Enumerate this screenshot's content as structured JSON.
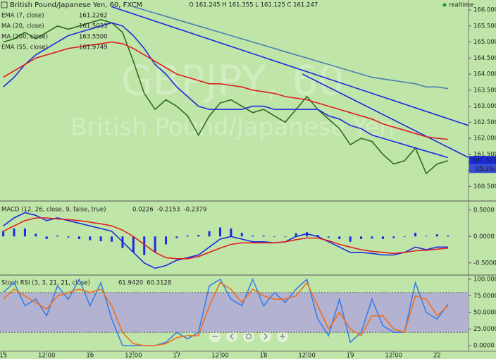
{
  "chart_data": [
    {
      "type": "line",
      "title": "British Pound/Japanese Yen, 60, FXCM",
      "ohlc": "O 161.245  H 161.355  L 161.125  C 161.247",
      "status": "realtime",
      "watermark": [
        "GBPJPY, 60",
        "British Pound/Japanese Yen"
      ],
      "xlim": [
        -0.3,
        42.9
      ],
      "ylim": [
        160.2,
        166.2
      ],
      "yticks": [
        {
          "value": 160.5,
          "label": "160.500"
        },
        {
          "value": 161,
          "label": "161.000"
        },
        {
          "value": 161.5,
          "label": "161.500"
        },
        {
          "value": 162,
          "label": "162.000"
        },
        {
          "value": 162.5,
          "label": "162.500"
        },
        {
          "value": 163,
          "label": "163.000"
        },
        {
          "value": 163.5,
          "label": "163.500"
        },
        {
          "value": 164,
          "label": "164.000"
        },
        {
          "value": 164.5,
          "label": "164.500"
        },
        {
          "value": 165,
          "label": "165.000"
        },
        {
          "value": 165.5,
          "label": "165.500"
        },
        {
          "value": 166,
          "label": "166.000"
        }
      ],
      "last_price": 161.315,
      "last_time": "15:29",
      "series": [
        {
          "name": "EMA (7, close)",
          "legend_value": "161.2262",
          "color": "#2e6b1e",
          "style": "line",
          "values": [
            165.0,
            165.1,
            165.3,
            165.1,
            165.3,
            165.5,
            165.4,
            165.5,
            165.6,
            165.7,
            165.6,
            165.3,
            164.4,
            163.4,
            162.9,
            163.2,
            163.0,
            162.7,
            162.1,
            162.7,
            163.1,
            163.2,
            163.0,
            162.8,
            162.9,
            162.7,
            162.5,
            162.9,
            163.3,
            162.9,
            162.6,
            162.3,
            161.8,
            162.0,
            161.9,
            161.5,
            161.2,
            161.3,
            161.7,
            160.9,
            161.2,
            161.3,
            null
          ]
        },
        {
          "name": "MA (20, close)",
          "legend_value": "161.5033",
          "color": "#1a2be0",
          "style": "line",
          "values": [
            163.6,
            163.9,
            164.3,
            164.6,
            164.8,
            165.0,
            165.2,
            165.3,
            165.4,
            165.5,
            165.6,
            165.5,
            165.2,
            164.8,
            164.3,
            164.0,
            163.6,
            163.3,
            163.0,
            162.9,
            162.9,
            162.9,
            162.9,
            163.0,
            163.0,
            162.9,
            162.9,
            162.9,
            162.9,
            162.9,
            162.7,
            162.6,
            162.4,
            162.3,
            162.1,
            162.0,
            161.9,
            161.8,
            161.7,
            161.6,
            161.5,
            161.4,
            null
          ]
        },
        {
          "name": "MA (200, close)",
          "legend_value": "163.5500",
          "color": "#4a7fb0",
          "style": "line",
          "values": [
            null,
            null,
            null,
            null,
            null,
            null,
            null,
            null,
            null,
            null,
            null,
            null,
            166.1,
            166.0,
            165.9,
            165.8,
            165.7,
            165.6,
            165.5,
            165.4,
            165.3,
            165.2,
            165.1,
            165.0,
            164.9,
            164.8,
            164.7,
            164.6,
            164.5,
            164.4,
            164.3,
            164.2,
            164.1,
            164.0,
            163.9,
            163.85,
            163.8,
            163.75,
            163.7,
            163.6,
            163.6,
            163.55,
            null
          ]
        },
        {
          "name": "EMA (55, close)",
          "legend_value": "161.9749",
          "color": "#e02020",
          "style": "line",
          "values": [
            163.9,
            164.1,
            164.3,
            164.5,
            164.6,
            164.7,
            164.8,
            164.85,
            164.9,
            164.95,
            165.0,
            164.95,
            164.8,
            164.6,
            164.4,
            164.2,
            164.0,
            163.9,
            163.8,
            163.7,
            163.7,
            163.65,
            163.6,
            163.5,
            163.45,
            163.4,
            163.3,
            163.25,
            163.2,
            163.1,
            163.0,
            162.9,
            162.8,
            162.7,
            162.6,
            162.45,
            162.35,
            162.25,
            162.15,
            162.05,
            162.0,
            161.97,
            null
          ]
        }
      ],
      "trendlines": [
        {
          "color": "#1a2be0",
          "x": [
            10,
            42.9
          ],
          "values": [
            166.1,
            162.4
          ]
        },
        {
          "color": "#1a2be0",
          "x": [
            27.6,
            42.9
          ],
          "values": [
            164.0,
            161.4
          ]
        }
      ]
    },
    {
      "type": "line",
      "title": "MACD (12, 26, close, 9, false, true)",
      "xlim": [
        -0.3,
        42.9
      ],
      "ylim": [
        -0.65,
        0.63
      ],
      "yticks": [
        {
          "value": -0.5,
          "label": "-0.5000"
        },
        {
          "value": 0,
          "label": "0.0000"
        },
        {
          "value": 0.5,
          "label": "0.5000"
        }
      ],
      "series": [
        {
          "legend_value": "0.0226",
          "color": "#1a2be0",
          "style": "bar",
          "values": [
            0.1,
            0.15,
            0.15,
            0.05,
            -0.05,
            0.02,
            -0.02,
            -0.05,
            -0.07,
            -0.09,
            -0.1,
            -0.22,
            -0.3,
            -0.35,
            -0.3,
            -0.15,
            -0.03,
            0.02,
            0.03,
            0.1,
            0.17,
            0.15,
            0.07,
            0.02,
            0.02,
            0,
            0,
            0.06,
            0.08,
            0.03,
            -0.02,
            -0.05,
            -0.1,
            -0.05,
            -0.04,
            -0.05,
            -0.03,
            0,
            0.07,
            0.01,
            0.04,
            0.02,
            null
          ]
        },
        {
          "legend_value": "-0.2153",
          "color": "#1a2be0",
          "style": "line",
          "values": [
            0.2,
            0.35,
            0.45,
            0.4,
            0.3,
            0.35,
            0.3,
            0.25,
            0.2,
            0.15,
            0.1,
            -0.1,
            -0.3,
            -0.5,
            -0.6,
            -0.55,
            -0.45,
            -0.4,
            -0.35,
            -0.2,
            -0.05,
            0.0,
            -0.05,
            -0.1,
            -0.1,
            -0.12,
            -0.1,
            0.0,
            0.05,
            0.0,
            -0.1,
            -0.2,
            -0.3,
            -0.3,
            -0.32,
            -0.35,
            -0.35,
            -0.3,
            -0.2,
            -0.25,
            -0.2,
            -0.2,
            null
          ]
        },
        {
          "legend_value": "-0.2379",
          "color": "#e02020",
          "style": "line",
          "values": [
            0.1,
            0.2,
            0.3,
            0.35,
            0.35,
            0.33,
            0.32,
            0.3,
            0.27,
            0.24,
            0.2,
            0.12,
            0.0,
            -0.15,
            -0.3,
            -0.4,
            -0.42,
            -0.42,
            -0.38,
            -0.3,
            -0.22,
            -0.15,
            -0.12,
            -0.12,
            -0.12,
            -0.12,
            -0.1,
            -0.06,
            -0.03,
            -0.03,
            -0.08,
            -0.15,
            -0.2,
            -0.25,
            -0.28,
            -0.3,
            -0.32,
            -0.3,
            -0.27,
            -0.26,
            -0.24,
            -0.22,
            null
          ]
        }
      ]
    },
    {
      "type": "line",
      "title": "Stoch RSI (3, 3, 21, 21, close)",
      "xlim": [
        -0.3,
        42.9
      ],
      "ylim": [
        -8.5,
        103.2
      ],
      "yticks": [
        {
          "value": 0,
          "label": "0.0000"
        },
        {
          "value": 25,
          "label": "25.0000"
        },
        {
          "value": 50,
          "label": "50.0000"
        },
        {
          "value": 75,
          "label": "75.0000"
        },
        {
          "value": 100,
          "label": "100.0000"
        }
      ],
      "band": [
        20,
        80
      ],
      "band_color": "#b0a8d8",
      "xticks": [
        {
          "value": 0,
          "label": "15"
        },
        {
          "value": 4,
          "label": "12:00"
        },
        {
          "value": 8,
          "label": "16"
        },
        {
          "value": 12,
          "label": "12:00"
        },
        {
          "value": 16,
          "label": "17"
        },
        {
          "value": 20,
          "label": "12:00"
        },
        {
          "value": 24,
          "label": "18"
        },
        {
          "value": 28,
          "label": "12:00"
        },
        {
          "value": 32,
          "label": "19"
        },
        {
          "value": 36,
          "label": "12:00"
        },
        {
          "value": 40,
          "label": "22"
        }
      ],
      "series": [
        {
          "legend_value": "61.9420",
          "color": "#3a7ee8",
          "style": "line",
          "values": [
            80,
            95,
            60,
            70,
            45,
            90,
            70,
            100,
            60,
            95,
            40,
            0,
            0,
            0,
            0,
            5,
            20,
            10,
            20,
            90,
            100,
            70,
            60,
            100,
            60,
            80,
            65,
            85,
            100,
            40,
            15,
            70,
            5,
            20,
            70,
            30,
            20,
            20,
            95,
            50,
            40,
            62,
            null
          ]
        },
        {
          "legend_value": "60.3128",
          "color": "#f07020",
          "style": "line",
          "values": [
            70,
            85,
            75,
            65,
            55,
            75,
            80,
            85,
            80,
            85,
            60,
            20,
            3,
            0,
            0,
            3,
            12,
            15,
            15,
            60,
            95,
            85,
            65,
            85,
            75,
            70,
            70,
            75,
            95,
            60,
            25,
            50,
            25,
            15,
            45,
            45,
            25,
            20,
            75,
            70,
            45,
            60,
            null
          ]
        }
      ]
    }
  ]
}
